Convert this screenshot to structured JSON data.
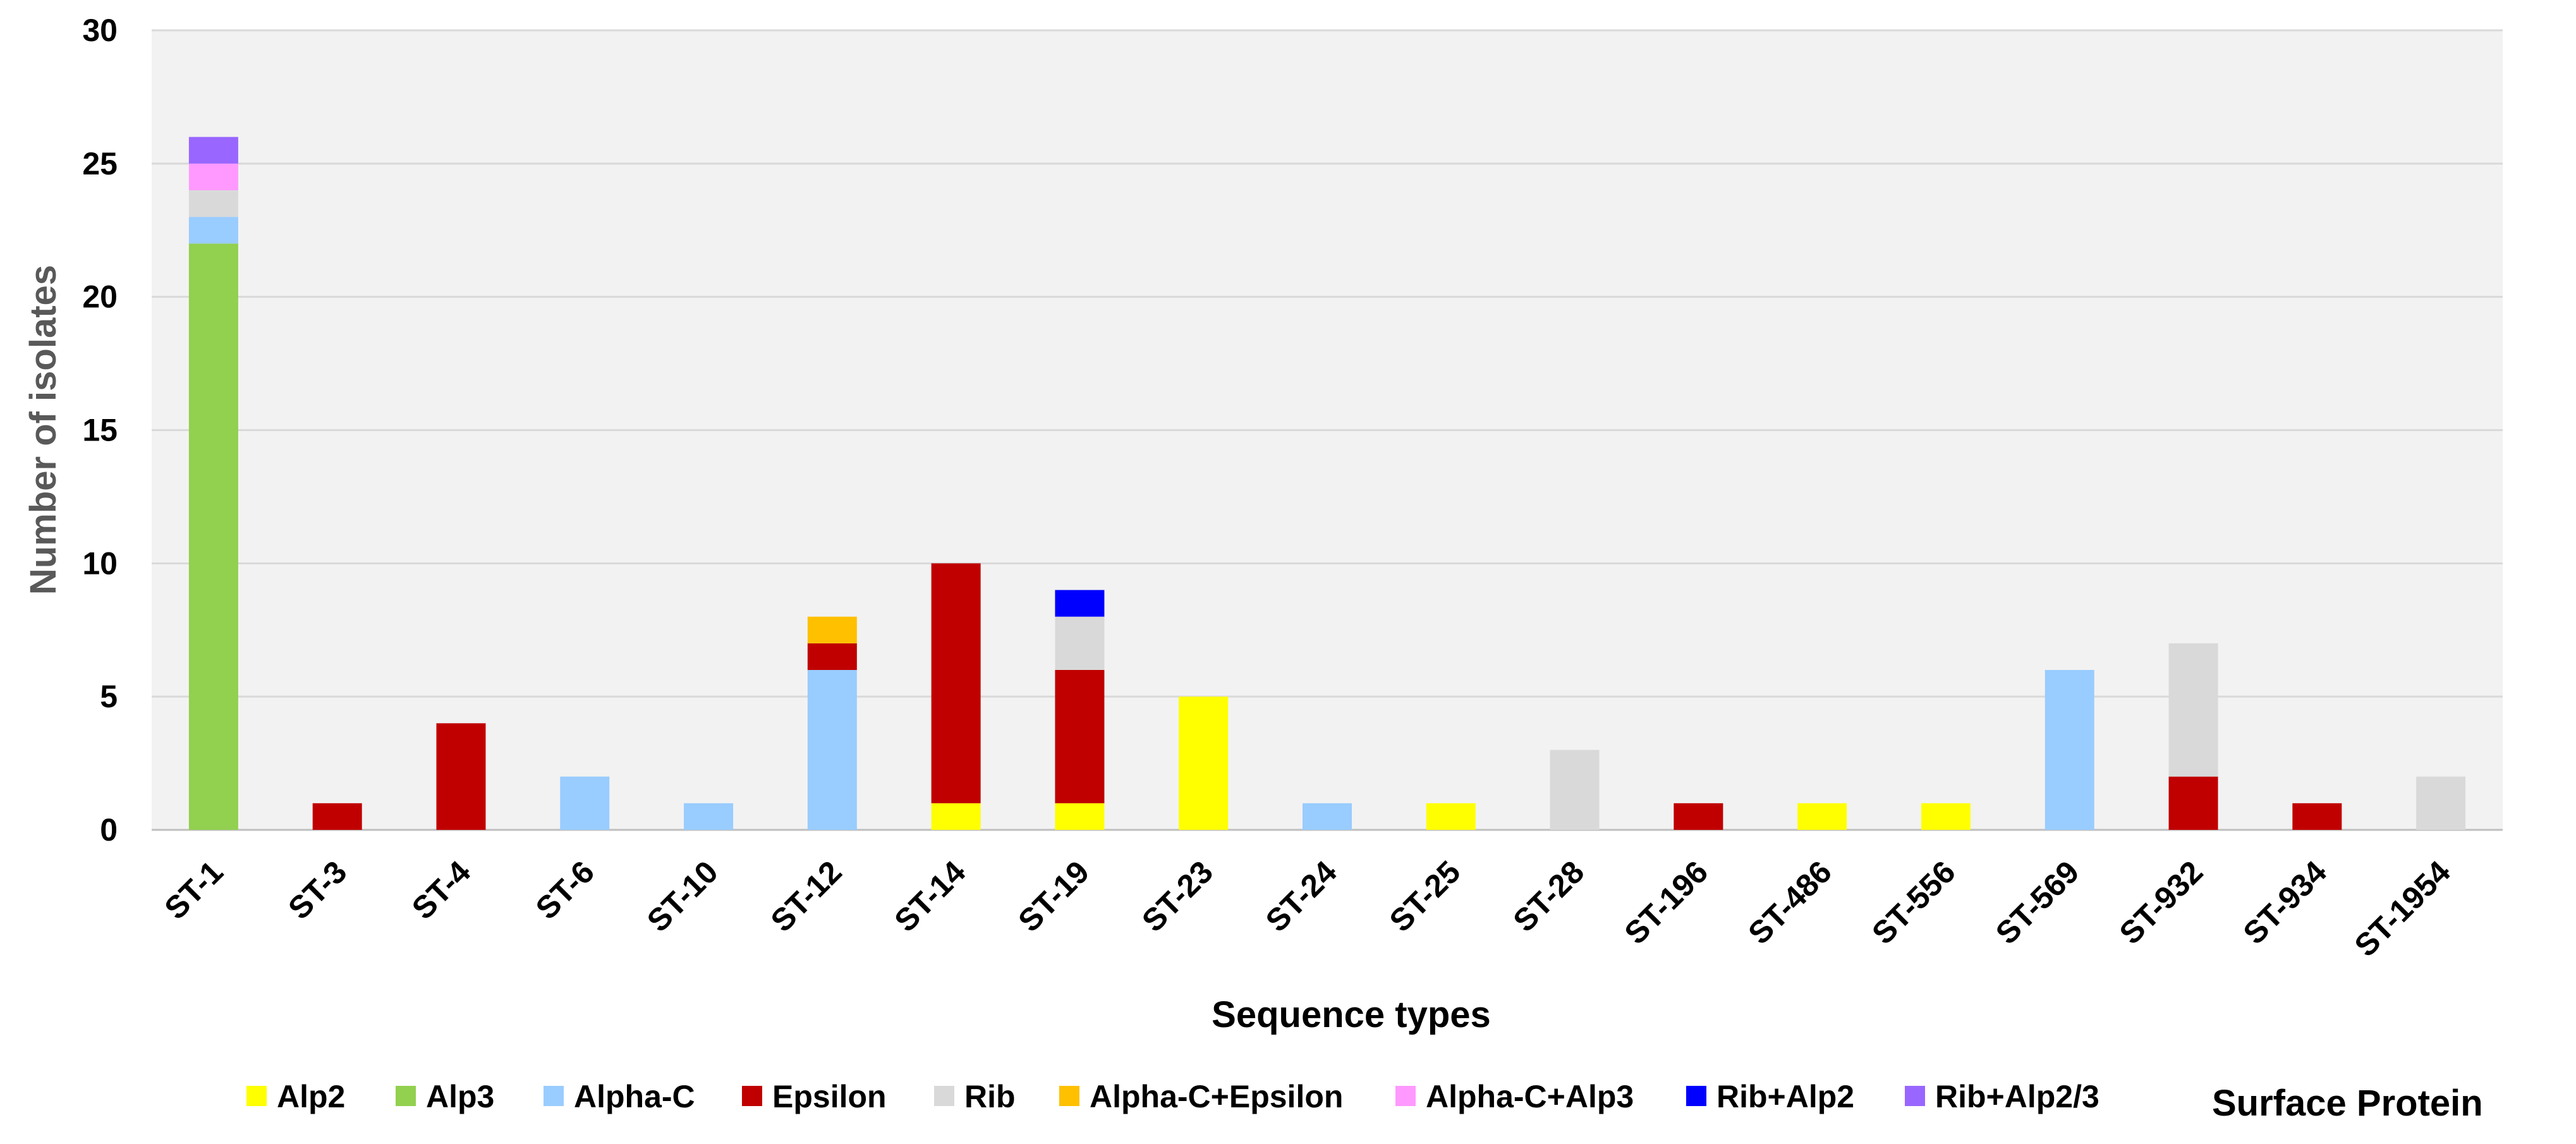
{
  "chart_data": {
    "type": "bar",
    "stacked": true,
    "xlabel": "Sequence types",
    "ylabel": "Number of isolates",
    "ylim": [
      0,
      30
    ],
    "yticks": [
      0,
      5,
      10,
      15,
      20,
      25,
      30
    ],
    "grid": true,
    "legend_title": "Surface Protein",
    "legend_position": "bottom",
    "categories": [
      "ST-1",
      "ST-3",
      "ST-4",
      "ST-6",
      "ST-10",
      "ST-12",
      "ST-14",
      "ST-19",
      "ST-23",
      "ST-24",
      "ST-25",
      "ST-28",
      "ST-196",
      "ST-486",
      "ST-556",
      "ST-569",
      "ST-932",
      "ST-934",
      "ST-1954"
    ],
    "series": [
      {
        "name": "Alp2",
        "color": "#FFFF00",
        "values": [
          0,
          0,
          0,
          0,
          0,
          0,
          1,
          1,
          5,
          0,
          1,
          0,
          0,
          1,
          1,
          0,
          0,
          0,
          0
        ]
      },
      {
        "name": "Alp3",
        "color": "#92D050",
        "values": [
          22,
          0,
          0,
          0,
          0,
          0,
          0,
          0,
          0,
          0,
          0,
          0,
          0,
          0,
          0,
          0,
          0,
          0,
          0
        ]
      },
      {
        "name": "Alpha-C",
        "color": "#99CCFF",
        "values": [
          1,
          0,
          0,
          2,
          1,
          6,
          0,
          0,
          0,
          1,
          0,
          0,
          0,
          0,
          0,
          6,
          0,
          0,
          0
        ]
      },
      {
        "name": "Epsilon",
        "color": "#C00000",
        "values": [
          0,
          1,
          4,
          0,
          0,
          1,
          9,
          5,
          0,
          0,
          0,
          0,
          1,
          0,
          0,
          0,
          2,
          1,
          0
        ]
      },
      {
        "name": "Rib",
        "color": "#D9D9D9",
        "values": [
          1,
          0,
          0,
          0,
          0,
          0,
          0,
          2,
          0,
          0,
          0,
          3,
          0,
          0,
          0,
          0,
          5,
          0,
          2
        ]
      },
      {
        "name": "Alpha-C+Epsilon",
        "color": "#FFC000",
        "values": [
          0,
          0,
          0,
          0,
          0,
          1,
          0,
          0,
          0,
          0,
          0,
          0,
          0,
          0,
          0,
          0,
          0,
          0,
          0
        ]
      },
      {
        "name": "Alpha-C+Alp3",
        "color": "#FF99FF",
        "values": [
          1,
          0,
          0,
          0,
          0,
          0,
          0,
          0,
          0,
          0,
          0,
          0,
          0,
          0,
          0,
          0,
          0,
          0,
          0
        ]
      },
      {
        "name": "Rib+Alp2",
        "color": "#0000FF",
        "values": [
          0,
          0,
          0,
          0,
          0,
          0,
          0,
          1,
          0,
          0,
          0,
          0,
          0,
          0,
          0,
          0,
          0,
          0,
          0
        ]
      },
      {
        "name": "Rib+Alp2/3",
        "color": "#9966FF",
        "values": [
          1,
          0,
          0,
          0,
          0,
          0,
          0,
          0,
          0,
          0,
          0,
          0,
          0,
          0,
          0,
          0,
          0,
          0,
          0
        ]
      }
    ]
  }
}
